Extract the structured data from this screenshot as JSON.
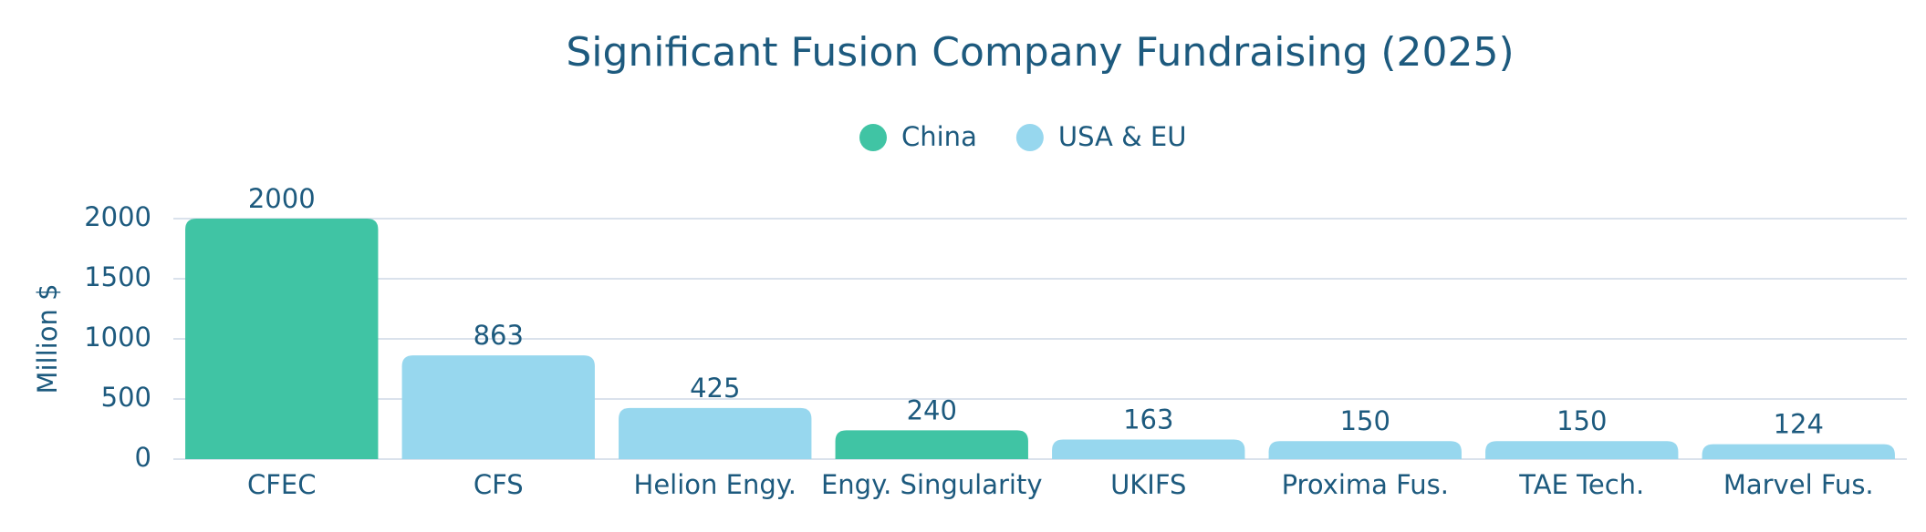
{
  "chart_data": {
    "type": "bar",
    "title": "Significant Fusion Company Fundraising (2025)",
    "y_label": "Million $",
    "categories": [
      "CFEC",
      "CFS",
      "Helion Engy.",
      "Engy. Singularity",
      "UKIFS",
      "Proxima Fus.",
      "TAE Tech.",
      "Marvel Fus."
    ],
    "series": [
      {
        "name": "China",
        "color": "#40c4a4",
        "values": [
          2000,
          null,
          null,
          240,
          null,
          null,
          null,
          null
        ]
      },
      {
        "name": "USA & EU",
        "color": "#97d7ee",
        "values": [
          null,
          863,
          425,
          null,
          163,
          150,
          150,
          124
        ]
      }
    ],
    "ylim": [
      0,
      2000
    ],
    "yticks": [
      0,
      500,
      1000,
      1500,
      2000
    ],
    "grid": true,
    "legend": "top"
  }
}
